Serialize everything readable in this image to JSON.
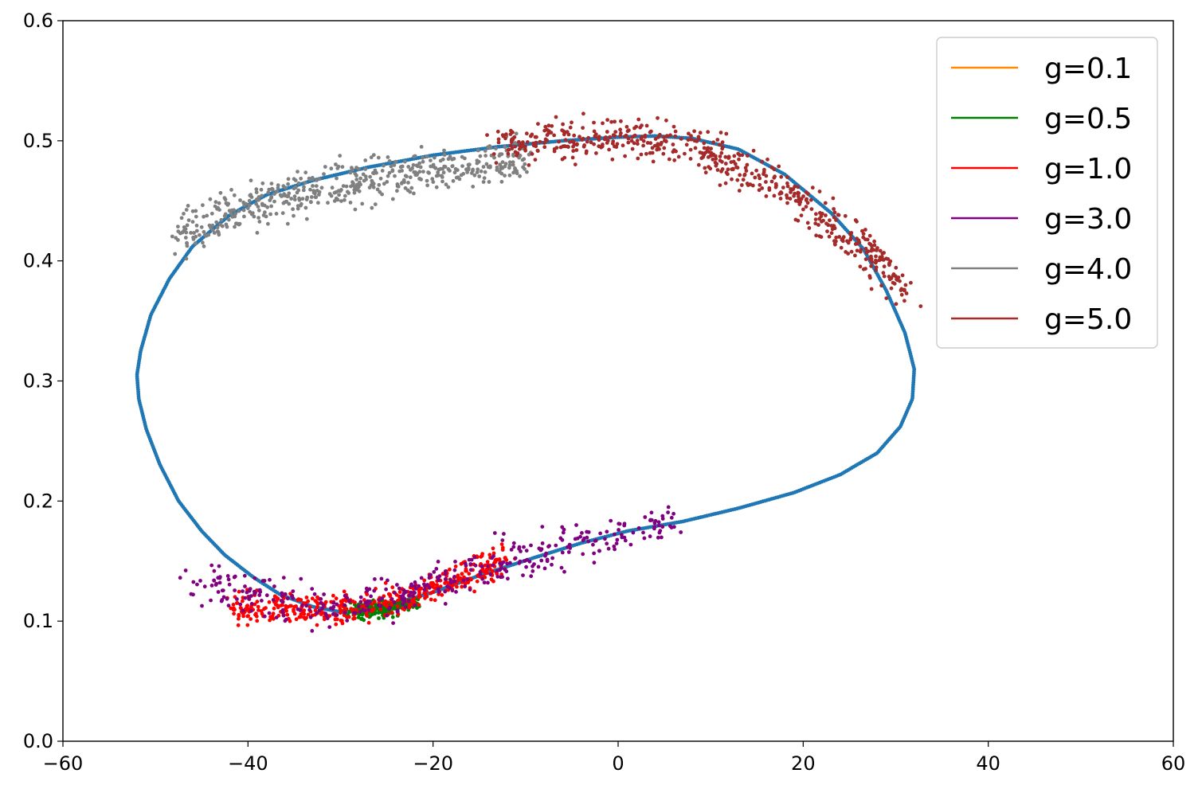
{
  "chart_data": {
    "type": "scatter",
    "title": "",
    "xlabel": "",
    "ylabel": "",
    "xlim": [
      -60,
      60
    ],
    "ylim": [
      0,
      0.6
    ],
    "x_ticks": [
      -60,
      -40,
      -20,
      0,
      20,
      40,
      60
    ],
    "x_tick_labels": [
      "−60",
      "−40",
      "−20",
      "0",
      "20",
      "40",
      "60"
    ],
    "y_ticks": [
      0,
      0.1,
      0.2,
      0.3,
      0.4,
      0.5,
      0.6
    ],
    "y_tick_labels": [
      "0.0",
      "0.1",
      "0.2",
      "0.3",
      "0.4",
      "0.5",
      "0.6"
    ],
    "grid": false,
    "legend_position": "top-right",
    "limit_cycle": {
      "color": "#1f77b4",
      "x": [
        -29.5,
        -33,
        -36.5,
        -39.5,
        -42.5,
        -45,
        -47.5,
        -49.5,
        -51,
        -51.8,
        -52,
        -51.6,
        -50.5,
        -48.5,
        -46,
        -42,
        -38,
        -33,
        -27,
        -20,
        -13,
        -6,
        0,
        4,
        8,
        13,
        18,
        23,
        26.5,
        29,
        31,
        32,
        31.8,
        30.5,
        28,
        24,
        19,
        13,
        7,
        1,
        -4,
        -9,
        -15,
        -20,
        -25,
        -29.5
      ],
      "y": [
        0.107,
        0.112,
        0.122,
        0.137,
        0.155,
        0.175,
        0.2,
        0.23,
        0.26,
        0.285,
        0.305,
        0.325,
        0.355,
        0.385,
        0.412,
        0.438,
        0.455,
        0.467,
        0.478,
        0.488,
        0.495,
        0.5,
        0.503,
        0.504,
        0.502,
        0.493,
        0.472,
        0.44,
        0.41,
        0.375,
        0.34,
        0.31,
        0.285,
        0.262,
        0.24,
        0.222,
        0.207,
        0.194,
        0.183,
        0.175,
        0.165,
        0.153,
        0.138,
        0.124,
        0.113,
        0.107
      ]
    },
    "series": [
      {
        "name": "g=0.1",
        "color": "#ff8c00",
        "points": 40,
        "x": [
          -26,
          -25
        ],
        "y": [
          0.111,
          0.112
        ],
        "spread": [
          0.6,
          0.0012
        ]
      },
      {
        "name": "g=0.5",
        "color": "#008000",
        "points": 260,
        "x": [
          -28.5,
          -26,
          -24,
          -22
        ],
        "y": [
          0.108,
          0.11,
          0.113,
          0.116
        ],
        "spread": [
          0.5,
          0.003
        ]
      },
      {
        "name": "g=1.0",
        "color": "#ff0000",
        "points": 420,
        "x": [
          -41.5,
          -35,
          -29,
          -25,
          -20,
          -16,
          -12
        ],
        "y": [
          0.111,
          0.111,
          0.11,
          0.115,
          0.127,
          0.138,
          0.152
        ],
        "spread": [
          0.6,
          0.006
        ]
      },
      {
        "name": "g=3.0",
        "color": "#800080",
        "points": 380,
        "x": [
          -46,
          -40,
          -35,
          -30,
          -24,
          -18,
          -12,
          -6,
          0,
          6
        ],
        "y": [
          0.138,
          0.125,
          0.116,
          0.112,
          0.12,
          0.135,
          0.148,
          0.162,
          0.172,
          0.185
        ],
        "spread": [
          0.8,
          0.009
        ]
      },
      {
        "name": "g=4.0",
        "color": "#808080",
        "points": 520,
        "x": [
          -47,
          -42,
          -37,
          -32,
          -26,
          -20,
          -14,
          -10
        ],
        "y": [
          0.425,
          0.438,
          0.45,
          0.461,
          0.47,
          0.476,
          0.482,
          0.486
        ],
        "spread": [
          0.8,
          0.009
        ]
      },
      {
        "name": "g=5.0",
        "color": "#a52a2a",
        "points": 560,
        "x": [
          -13,
          -6,
          0,
          5,
          10,
          15,
          20,
          24,
          27,
          31
        ],
        "y": [
          0.495,
          0.5,
          0.502,
          0.499,
          0.49,
          0.472,
          0.45,
          0.425,
          0.41,
          0.375
        ],
        "spread": [
          0.8,
          0.008
        ]
      }
    ]
  }
}
